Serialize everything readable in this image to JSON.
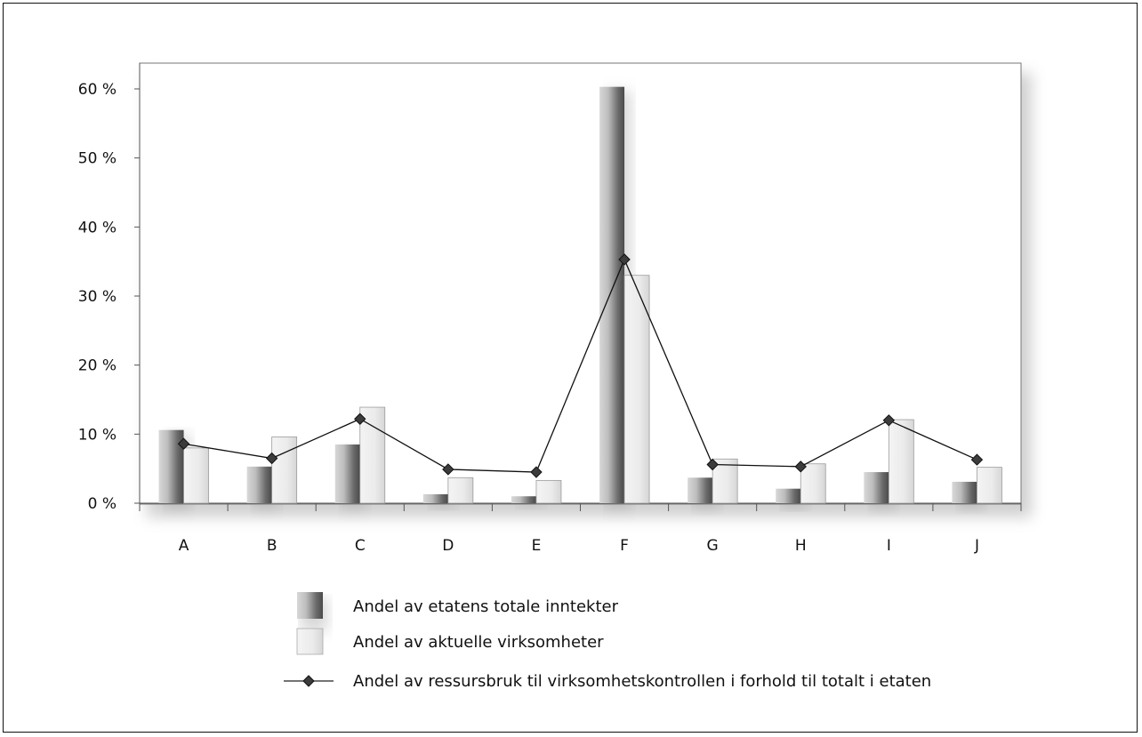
{
  "chart_data": {
    "type": "bar",
    "categories": [
      "A",
      "B",
      "C",
      "D",
      "E",
      "F",
      "G",
      "H",
      "I",
      "J"
    ],
    "y_tick_labels": [
      "0 %",
      "10 %",
      "20 %",
      "30 %",
      "40 %",
      "50 %",
      "60 %"
    ],
    "ylim": [
      0,
      60
    ],
    "grid": false,
    "legend_placement": "bottom",
    "series": [
      {
        "name": "Andel av etatens totale inntekter",
        "type": "bar",
        "style": "dark-gradient",
        "values": [
          10.6,
          5.3,
          8.5,
          1.3,
          1.0,
          60.3,
          3.7,
          2.1,
          4.5,
          3.1
        ]
      },
      {
        "name": "Andel av aktuelle virksomheter",
        "type": "bar",
        "style": "light-gradient",
        "values": [
          8.0,
          9.6,
          13.9,
          3.7,
          3.3,
          33.0,
          6.4,
          5.7,
          12.1,
          5.2
        ]
      },
      {
        "name": "Andel av ressursbruk til virksomhetskontrollen i forhold til totalt i etaten",
        "type": "line",
        "marker": "diamond",
        "values": [
          8.6,
          6.5,
          12.2,
          4.9,
          4.5,
          35.3,
          5.6,
          5.3,
          12.0,
          6.3
        ]
      }
    ]
  }
}
